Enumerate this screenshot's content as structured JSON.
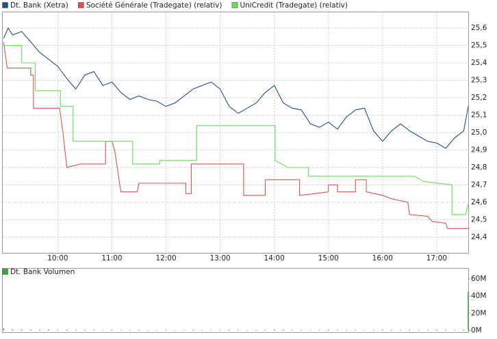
{
  "chart_data": [
    {
      "type": "line",
      "xlim": [
        "08:59",
        "17:35"
      ],
      "xticks": [
        "10:00",
        "11:00",
        "12:00",
        "13:00",
        "14:00",
        "15:00",
        "16:00",
        "17:00"
      ],
      "ylim": [
        24.31,
        25.69
      ],
      "yticks": [
        {
          "value": 24.4,
          "label": "24,4"
        },
        {
          "value": 24.5,
          "label": "24,5"
        },
        {
          "value": 24.6,
          "label": "24,6"
        },
        {
          "value": 24.7,
          "label": "24,7"
        },
        {
          "value": 24.8,
          "label": "24,8"
        },
        {
          "value": 24.9,
          "label": "24,9"
        },
        {
          "value": 25.0,
          "label": "25,0"
        },
        {
          "value": 25.1,
          "label": "25,1"
        },
        {
          "value": 25.2,
          "label": "25,2"
        },
        {
          "value": 25.3,
          "label": "25,3"
        },
        {
          "value": 25.4,
          "label": "25,4"
        },
        {
          "value": 25.5,
          "label": "25,5"
        },
        {
          "value": 25.6,
          "label": "25,6"
        }
      ],
      "grid": true,
      "series": [
        {
          "name": "Dt. Bank (Xetra)",
          "color": "#1f4e8c",
          "x": [
            "09:00",
            "09:05",
            "09:10",
            "09:20",
            "09:30",
            "09:40",
            "09:50",
            "10:00",
            "10:10",
            "10:20",
            "10:30",
            "10:40",
            "10:50",
            "11:00",
            "11:10",
            "11:20",
            "11:30",
            "11:40",
            "11:50",
            "12:00",
            "12:10",
            "12:20",
            "12:30",
            "12:40",
            "12:50",
            "13:00",
            "13:10",
            "13:20",
            "13:30",
            "13:40",
            "13:50",
            "14:00",
            "14:10",
            "14:20",
            "14:30",
            "14:40",
            "14:50",
            "15:00",
            "15:10",
            "15:20",
            "15:30",
            "15:40",
            "15:50",
            "16:00",
            "16:10",
            "16:20",
            "16:30",
            "16:40",
            "16:50",
            "17:00",
            "17:10",
            "17:20",
            "17:30",
            "17:35"
          ],
          "values": [
            25.54,
            25.6,
            25.56,
            25.58,
            25.52,
            25.46,
            25.42,
            25.38,
            25.31,
            25.25,
            25.33,
            25.35,
            25.27,
            25.29,
            25.23,
            25.19,
            25.21,
            25.19,
            25.18,
            25.15,
            25.17,
            25.21,
            25.25,
            25.27,
            25.29,
            25.25,
            25.15,
            25.11,
            25.14,
            25.17,
            25.23,
            25.27,
            25.17,
            25.14,
            25.13,
            25.05,
            25.03,
            25.06,
            25.02,
            25.09,
            25.13,
            25.14,
            25.01,
            24.95,
            25.01,
            25.05,
            25.01,
            24.98,
            24.95,
            24.94,
            24.91,
            24.97,
            25.01,
            25.15
          ]
        },
        {
          "name": "Société Générale (Tradegate) (relativ)",
          "color": "#e05050",
          "x": [
            "09:00",
            "09:04",
            "09:30",
            "09:30",
            "09:33",
            "09:33",
            "10:02",
            "10:06",
            "10:10",
            "10:25",
            "10:53",
            "10:53",
            "11:00",
            "11:03",
            "11:10",
            "11:28",
            "11:30",
            "12:22",
            "12:22",
            "12:28",
            "12:28",
            "13:26",
            "13:26",
            "13:50",
            "13:50",
            "14:28",
            "14:28",
            "14:45",
            "15:00",
            "15:00",
            "15:10",
            "15:10",
            "15:30",
            "15:30",
            "15:42",
            "15:42",
            "16:00",
            "16:10",
            "16:28",
            "16:30",
            "16:50",
            "16:55",
            "17:10",
            "17:12",
            "17:25",
            "17:35"
          ],
          "values": [
            25.52,
            25.37,
            25.37,
            25.33,
            25.33,
            25.14,
            25.14,
            24.99,
            24.8,
            24.82,
            24.82,
            24.95,
            24.95,
            24.9,
            24.66,
            24.66,
            24.71,
            24.71,
            24.65,
            24.65,
            24.82,
            24.82,
            24.64,
            24.64,
            24.73,
            24.73,
            24.64,
            24.65,
            24.66,
            24.7,
            24.7,
            24.66,
            24.66,
            24.73,
            24.73,
            24.66,
            24.64,
            24.62,
            24.6,
            24.53,
            24.52,
            24.49,
            24.48,
            24.45,
            24.45,
            24.45
          ]
        },
        {
          "name": "UniCredit (Tradegate) (relativ)",
          "color": "#66dd55",
          "x": [
            "09:00",
            "09:20",
            "09:20",
            "09:35",
            "09:35",
            "10:03",
            "10:03",
            "10:17",
            "10:17",
            "11:23",
            "11:23",
            "11:53",
            "11:53",
            "12:34",
            "12:34",
            "14:01",
            "14:01",
            "14:15",
            "14:38",
            "14:38",
            "16:35",
            "16:45",
            "17:17",
            "17:17",
            "17:32",
            "17:35"
          ],
          "values": [
            25.5,
            25.5,
            25.4,
            25.4,
            25.24,
            25.24,
            25.15,
            25.15,
            24.95,
            24.95,
            24.82,
            24.82,
            24.84,
            24.84,
            25.04,
            25.04,
            24.84,
            24.8,
            24.8,
            24.75,
            24.75,
            24.72,
            24.7,
            24.53,
            24.53,
            24.59
          ]
        }
      ]
    },
    {
      "type": "bar",
      "xlim": [
        "08:59",
        "17:35"
      ],
      "ylim": [
        -2,
        72
      ],
      "yticks": [
        {
          "value": 0,
          "label": "0M"
        },
        {
          "value": 20,
          "label": "20M"
        },
        {
          "value": 40,
          "label": "40M"
        },
        {
          "value": 60,
          "label": "60M"
        }
      ],
      "series": [
        {
          "name": "Dt. Bank Volumen",
          "color": "#33aa33",
          "x": [
            "09:00",
            "09:10",
            "09:20",
            "09:30",
            "09:40",
            "09:50",
            "10:00",
            "10:10",
            "10:20",
            "10:30",
            "10:40",
            "10:50",
            "11:00",
            "11:10",
            "11:20",
            "11:30",
            "11:40",
            "11:50",
            "12:00",
            "12:10",
            "12:20",
            "12:30",
            "12:40",
            "12:50",
            "13:00",
            "13:10",
            "13:20",
            "13:30",
            "13:40",
            "13:50",
            "14:00",
            "14:10",
            "14:20",
            "14:30",
            "14:40",
            "14:50",
            "15:00",
            "15:10",
            "15:20",
            "15:30",
            "15:40",
            "15:50",
            "16:00",
            "16:10",
            "16:20",
            "16:30",
            "16:40",
            "16:50",
            "17:00",
            "17:10",
            "17:20",
            "17:30",
            "17:35"
          ],
          "values": [
            2.5,
            1.5,
            1.2,
            1.0,
            0.8,
            1.2,
            0.9,
            1.1,
            0.7,
            0.8,
            1.0,
            0.6,
            0.9,
            0.7,
            0.6,
            0.8,
            0.5,
            0.6,
            0.7,
            0.5,
            0.6,
            0.8,
            0.5,
            0.6,
            0.7,
            1.0,
            0.8,
            0.6,
            0.7,
            0.9,
            1.3,
            0.9,
            0.7,
            0.8,
            0.6,
            0.7,
            1.1,
            0.8,
            0.7,
            0.9,
            0.6,
            0.8,
            1.0,
            0.7,
            0.8,
            0.9,
            0.7,
            0.8,
            1.0,
            0.9,
            0.8,
            1.2,
            45
          ]
        }
      ]
    }
  ]
}
